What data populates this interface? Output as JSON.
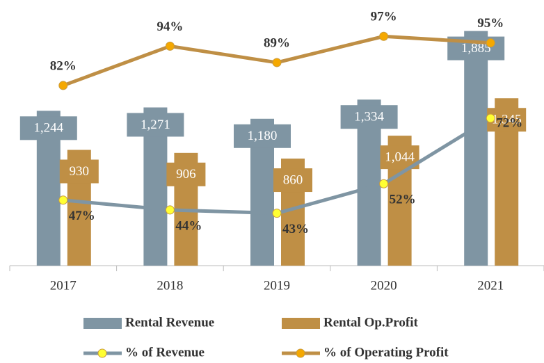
{
  "chart_data": {
    "type": "bar",
    "categories": [
      "2017",
      "2018",
      "2019",
      "2020",
      "2021"
    ],
    "ylim": [
      0,
      2000
    ],
    "y2lim": [
      27,
      103
    ],
    "series": [
      {
        "name": "Rental Revenue",
        "type": "bar",
        "color": "#7f95a3",
        "values": [
          1244,
          1271,
          1180,
          1334,
          1885
        ],
        "value_labels": [
          "1,244",
          "1,271",
          "1,180",
          "1,334",
          "1,885"
        ]
      },
      {
        "name": "Rental Op.Profit",
        "type": "bar",
        "color": "#bf8f45",
        "values": [
          930,
          906,
          860,
          1044,
          1345
        ],
        "value_labels": [
          "930",
          "906",
          "860",
          "1,044",
          "1,345"
        ]
      },
      {
        "name": "% of Revenue",
        "type": "line",
        "axis": "y2",
        "color": "#7f95a3",
        "marker_color": "#ffff33",
        "values": [
          47,
          44,
          43,
          52,
          72
        ],
        "value_labels": [
          "47%",
          "44%",
          "43%",
          "52%",
          "72%"
        ]
      },
      {
        "name": "% of Operating Profit",
        "type": "line",
        "axis": "y2",
        "color": "#bf8f45",
        "marker_color": "#f5a800",
        "values": [
          82,
          94,
          89,
          97,
          95
        ],
        "value_labels": [
          "82%",
          "94%",
          "89%",
          "97%",
          "95%"
        ]
      }
    ]
  }
}
